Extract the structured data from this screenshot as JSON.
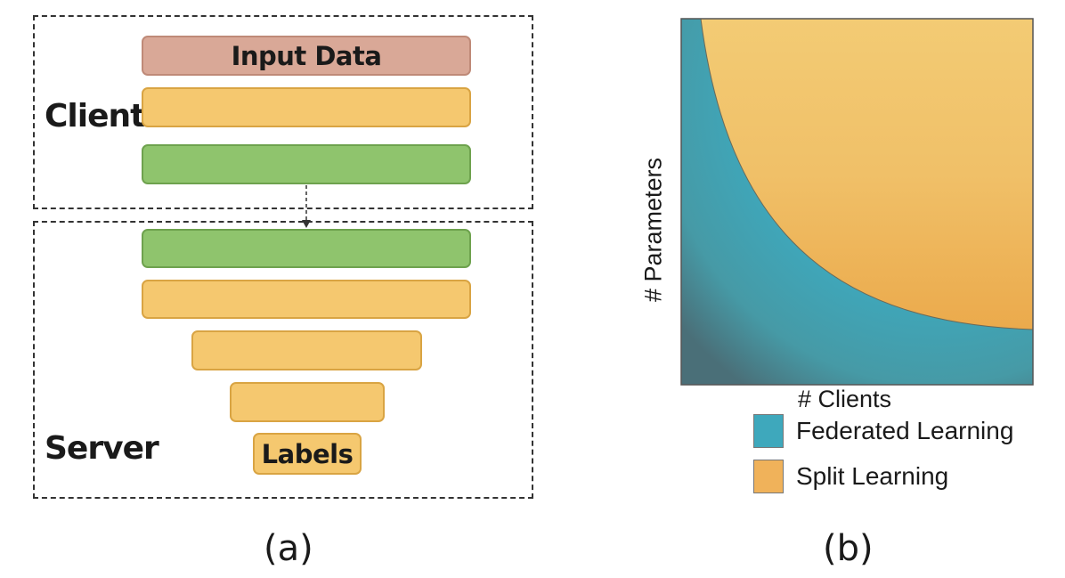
{
  "panel_a": {
    "client_label": "Client",
    "server_label": "Server",
    "input_layer": "Input Data",
    "labels_layer": "Labels",
    "caption": "(a)"
  },
  "panel_b": {
    "xlabel": "# Clients",
    "ylabel": "# Parameters",
    "caption": "(b)",
    "legend": [
      {
        "label": "Federated Learning",
        "color": "#3ea8bc"
      },
      {
        "label": "Split Learning",
        "color": "#f0b25a"
      }
    ],
    "colors": {
      "federated": "#3ea8bc",
      "split": "#f0b25a",
      "corner": "#4a6f78"
    }
  }
}
